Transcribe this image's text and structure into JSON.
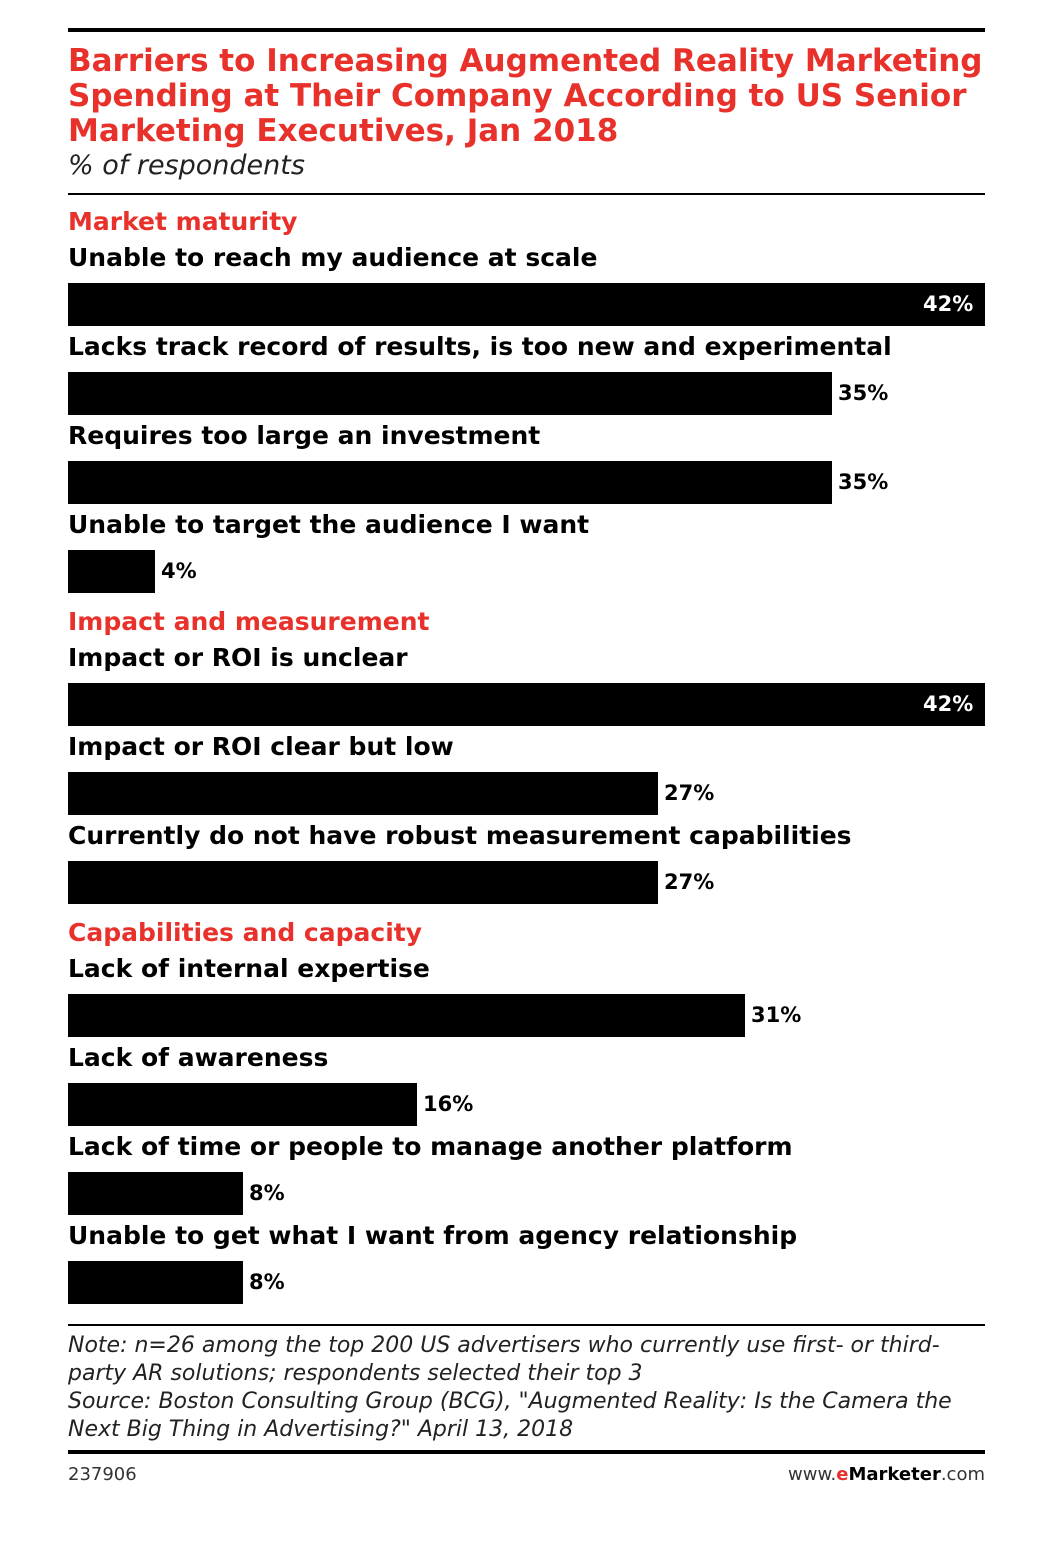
{
  "title": "Barriers to Increasing Augmented Reality Marketing Spending at Their Company According to US Senior Marketing Executives, Jan 2018",
  "subtitle": "% of respondents",
  "chart_data": {
    "type": "bar",
    "orientation": "horizontal",
    "value_suffix": "%",
    "xlim": [
      0,
      42
    ],
    "groups": [
      {
        "name": "Market maturity",
        "categories": [
          "Unable to reach my audience at scale",
          "Lacks track record of results, is too new and experimental",
          "Requires too large an investment",
          "Unable to target the audience I want"
        ],
        "values": [
          42,
          35,
          35,
          4
        ]
      },
      {
        "name": "Impact and measurement",
        "categories": [
          "Impact or ROI is unclear",
          "Impact or ROI clear but low",
          "Currently do not have robust measurement capabilities"
        ],
        "values": [
          42,
          27,
          27
        ]
      },
      {
        "name": "Capabilities and capacity",
        "categories": [
          "Lack of internal expertise",
          "Lack of awareness",
          "Lack of time or people to manage another platform",
          "Unable to get what I want from agency relationship"
        ],
        "values": [
          31,
          16,
          8,
          8
        ]
      }
    ],
    "bar_color": "#000000",
    "section_color": "#e8312a"
  },
  "note": "Note: n=26 among the top 200 US advertisers who currently use first- or third-party AR solutions; respondents selected their top 3",
  "source": "Source: Boston Consulting Group (BCG), \"Augmented Reality: Is the Camera the Next Big Thing in Advertising?\" April 13, 2018",
  "footer": {
    "chart_id": "237906",
    "brand_prefix": "www.",
    "brand_e": "e",
    "brand_main": "Marketer",
    "brand_suffix": ".com"
  }
}
